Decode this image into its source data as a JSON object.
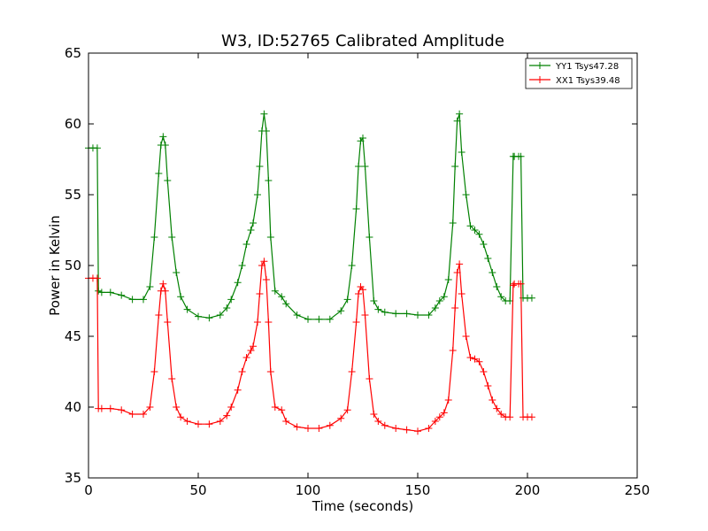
{
  "chart_data": {
    "type": "line",
    "title": "W3, ID:52765 Calibrated Amplitude",
    "xlabel": "Time (seconds)",
    "ylabel": "Power in Kelvin",
    "xlim": [
      0,
      250
    ],
    "ylim": [
      35,
      65
    ],
    "xticks": [
      "0",
      "50",
      "100",
      "150",
      "200",
      "250"
    ],
    "yticks": [
      "35",
      "40",
      "45",
      "50",
      "55",
      "60",
      "65"
    ],
    "grid": false,
    "legend_position": "top-right",
    "marker": "+",
    "series": [
      {
        "name": "YY1 Tsys47.28",
        "color": "#008000",
        "x": [
          0,
          2,
          4,
          4.5,
          6,
          10,
          15,
          20,
          25,
          28,
          30,
          32,
          33,
          34,
          35,
          36,
          38,
          40,
          42,
          45,
          50,
          55,
          60,
          63,
          65,
          68,
          70,
          72,
          74,
          75,
          77,
          78,
          79,
          80,
          81,
          82,
          83,
          85,
          88,
          90,
          95,
          100,
          105,
          110,
          115,
          118,
          120,
          122,
          123,
          124,
          125,
          126,
          128,
          130,
          132,
          135,
          140,
          145,
          150,
          155,
          158,
          160,
          162,
          164,
          166,
          167,
          168,
          169,
          170,
          172,
          174,
          176,
          178,
          180,
          182,
          184,
          186,
          188,
          190,
          192,
          193.5,
          194,
          196,
          197,
          198,
          200,
          202
        ],
        "y": [
          58.3,
          58.3,
          58.3,
          48.2,
          48.1,
          48.1,
          47.9,
          47.6,
          47.6,
          48.5,
          52,
          56.5,
          58.5,
          59.1,
          58.5,
          56,
          52,
          49.5,
          47.8,
          46.9,
          46.4,
          46.3,
          46.5,
          47,
          47.6,
          48.8,
          50,
          51.5,
          52.5,
          53,
          55,
          57,
          59.5,
          60.7,
          59.5,
          56,
          52,
          48.2,
          47.8,
          47.3,
          46.5,
          46.2,
          46.2,
          46.2,
          46.8,
          47.6,
          50,
          54,
          57,
          58.8,
          59,
          57,
          52,
          47.5,
          46.9,
          46.7,
          46.6,
          46.6,
          46.5,
          46.5,
          47,
          47.5,
          47.8,
          49,
          53,
          57,
          60.2,
          60.7,
          58,
          55,
          52.8,
          52.5,
          52.2,
          51.5,
          50.5,
          49.5,
          48.5,
          47.8,
          47.5,
          47.5,
          57.7,
          57.7,
          57.7,
          57.7,
          47.7,
          47.7,
          47.7
        ]
      },
      {
        "name": "XX1 Tsys39.48",
        "color": "#ff0000",
        "x": [
          0,
          2,
          4,
          4.5,
          6,
          10,
          15,
          20,
          25,
          28,
          30,
          32,
          33,
          34,
          35,
          36,
          38,
          40,
          42,
          45,
          50,
          55,
          60,
          63,
          65,
          68,
          70,
          72,
          74,
          75,
          77,
          78,
          79,
          80,
          81,
          82,
          83,
          85,
          88,
          90,
          95,
          100,
          105,
          110,
          115,
          118,
          120,
          122,
          123,
          124,
          125,
          126,
          128,
          130,
          132,
          135,
          140,
          145,
          150,
          155,
          158,
          160,
          162,
          164,
          166,
          167,
          168,
          169,
          170,
          172,
          174,
          176,
          178,
          180,
          182,
          184,
          186,
          188,
          190,
          192,
          193.5,
          194,
          196,
          197,
          198,
          200,
          202
        ],
        "y": [
          49.1,
          49.1,
          49.1,
          39.9,
          39.9,
          39.9,
          39.8,
          39.5,
          39.5,
          40,
          42.5,
          46.5,
          48.2,
          48.7,
          48.2,
          46,
          42,
          40,
          39.3,
          39,
          38.8,
          38.8,
          39,
          39.4,
          40,
          41.2,
          42.5,
          43.5,
          44,
          44.3,
          46,
          48,
          50,
          50.3,
          49,
          46,
          42.5,
          40,
          39.8,
          39,
          38.6,
          38.5,
          38.5,
          38.7,
          39.2,
          39.8,
          42.5,
          46,
          48,
          48.5,
          48.3,
          46.5,
          42,
          39.5,
          39,
          38.7,
          38.5,
          38.4,
          38.3,
          38.5,
          39,
          39.3,
          39.6,
          40.5,
          44,
          47,
          49.5,
          50.1,
          48,
          45,
          43.5,
          43.4,
          43.2,
          42.5,
          41.5,
          40.5,
          39.9,
          39.5,
          39.3,
          39.3,
          48.6,
          48.7,
          48.7,
          48.7,
          39.3,
          39.3,
          39.3
        ]
      }
    ]
  }
}
